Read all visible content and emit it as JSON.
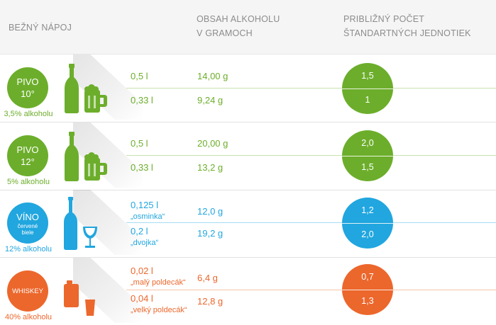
{
  "header": {
    "col1": "BEŽNÝ NÁPOJ",
    "col2_line1": "OBSAH ALKOHOLU",
    "col2_line2": "V GRAMOCH",
    "col3_line1": "PRIBLIŽNÝ POČET",
    "col3_line2": "ŠTANDARTNÝCH JEDNOTIEK"
  },
  "colors": {
    "green": "#6cae2b",
    "blue": "#21a6df",
    "orange": "#ec672c"
  },
  "drinks": [
    {
      "name": "PIVO",
      "line2": "10°",
      "percent": "3,5% alkoholu",
      "icons": [
        "beer-bottle-icon",
        "beer-mug-icon"
      ],
      "rows": [
        {
          "volume": "0,5 l",
          "note": "",
          "grams": "14,00 g",
          "units": "1,5"
        },
        {
          "volume": "0,33 l",
          "note": "",
          "grams": "9,24 g",
          "units": "1"
        }
      ]
    },
    {
      "name": "PIVO",
      "line2": "12°",
      "percent": "5% alkoholu",
      "icons": [
        "beer-bottle-icon",
        "beer-mug-icon"
      ],
      "rows": [
        {
          "volume": "0,5 l",
          "note": "",
          "grams": "20,00 g",
          "units": "2,0"
        },
        {
          "volume": "0,33 l",
          "note": "",
          "grams": "13,2 g",
          "units": "1,5"
        }
      ]
    },
    {
      "name": "VÍNO",
      "line2": "červené",
      "line3": "biele",
      "percent": "12% alkoholu",
      "icons": [
        "wine-bottle-icon",
        "wine-glass-icon"
      ],
      "rows": [
        {
          "volume": "0,125 l",
          "note": "„osminka“",
          "grams": "12,0 g",
          "units": "1,2"
        },
        {
          "volume": "0,2 l",
          "note": "„dvojka“",
          "grams": "19,2 g",
          "units": "2,0"
        }
      ]
    },
    {
      "name": "WHISKEY",
      "percent": "40% alkoholu",
      "icons": [
        "flask-icon",
        "shot-glass-icon"
      ],
      "rows": [
        {
          "volume": "0,02 l",
          "note": "„malý poldecák“",
          "grams": "6,4 g",
          "units": "0,7"
        },
        {
          "volume": "0,04 l",
          "note": "„velký poldecák“",
          "grams": "12,8 g",
          "units": "1,3"
        }
      ]
    }
  ]
}
